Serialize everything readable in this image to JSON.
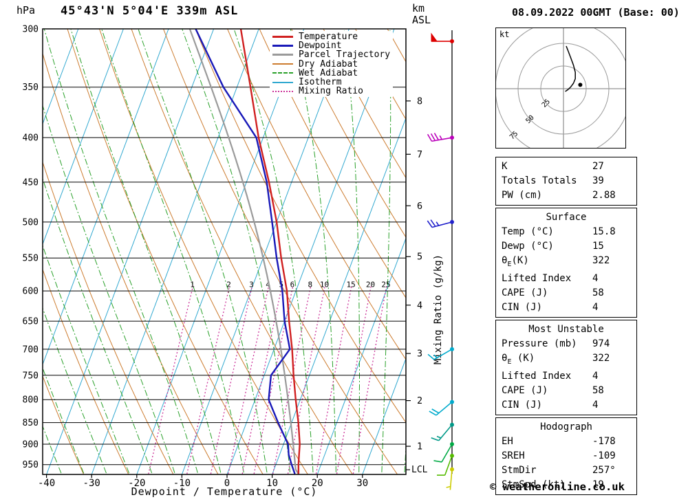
{
  "header": {
    "pressure_unit": "hPa",
    "station_title": "45°43'N 5°04'E 339m ASL",
    "altitude_unit_line1": "km",
    "altitude_unit_line2": "ASL",
    "datetime": "08.09.2022 00GMT (Base: 00)"
  },
  "axes": {
    "x_label": "Dewpoint / Temperature (°C)",
    "x_ticks": [
      -40,
      -30,
      -20,
      -10,
      0,
      10,
      20,
      30
    ],
    "pressure_ticks": [
      300,
      350,
      400,
      450,
      500,
      550,
      600,
      650,
      700,
      750,
      800,
      850,
      900,
      950
    ],
    "km_ticks": [
      1,
      2,
      3,
      4,
      5,
      6,
      7,
      8
    ],
    "km_tick_pressures": [
      905,
      802,
      708,
      623,
      548,
      479,
      418,
      363
    ],
    "lcl_label": "LCL",
    "mixing_ratio_label": "Mixing Ratio (g/kg)",
    "mixing_ratio_lines": [
      1,
      2,
      3,
      4,
      5,
      6,
      8,
      10,
      15,
      20,
      25
    ]
  },
  "legend": {
    "items": [
      {
        "label": "Temperature",
        "color": "#d02020",
        "style": "solid",
        "weight": 3
      },
      {
        "label": "Dewpoint",
        "color": "#1818b8",
        "style": "solid",
        "weight": 3
      },
      {
        "label": "Parcel Trajectory",
        "color": "#9a9a9a",
        "style": "solid",
        "weight": 3
      },
      {
        "label": "Dry Adiabat",
        "color": "#cc7b2e",
        "style": "solid",
        "weight": 2
      },
      {
        "label": "Wet Adiabat",
        "color": "#28a028",
        "style": "dashed",
        "weight": 2
      },
      {
        "label": "Isotherm",
        "color": "#30a8d0",
        "style": "solid",
        "weight": 2
      },
      {
        "label": "Mixing Ratio",
        "color": "#cc3399",
        "style": "dotted",
        "weight": 2
      }
    ]
  },
  "chart_data": {
    "type": "skewt-log-p",
    "pressure_range_hpa": [
      300,
      975
    ],
    "temperature_axis_c": [
      -40,
      40
    ],
    "profile": {
      "pressure_hpa": [
        974,
        950,
        925,
        900,
        850,
        800,
        750,
        700,
        650,
        600,
        550,
        500,
        450,
        400,
        350,
        300
      ],
      "temperature_c": [
        15.8,
        15,
        14.3,
        13.6,
        11.5,
        9,
        6.5,
        4,
        1,
        -2,
        -6,
        -10,
        -15,
        -21,
        -27,
        -34
      ],
      "dewpoint_c": [
        15,
        13.5,
        12,
        11,
        7,
        3,
        1.5,
        3.5,
        0,
        -3,
        -7,
        -11,
        -15.5,
        -21.5,
        -33,
        -44
      ]
    },
    "parcel": {
      "start_pressure_hpa": 974,
      "start_temp_c": 15.8,
      "start_dewpoint_c": 15
    },
    "lcl_pressure_hpa": 963
  },
  "wind_barbs": [
    {
      "pressure_hpa": 310,
      "direction_deg": 270,
      "speed_kt": 50,
      "color": "#dd0000"
    },
    {
      "pressure_hpa": 400,
      "direction_deg": 260,
      "speed_kt": 35,
      "color": "#bb00bb"
    },
    {
      "pressure_hpa": 500,
      "direction_deg": 255,
      "speed_kt": 25,
      "color": "#2222cc"
    },
    {
      "pressure_hpa": 700,
      "direction_deg": 240,
      "speed_kt": 15,
      "color": "#00aacc"
    },
    {
      "pressure_hpa": 805,
      "direction_deg": 230,
      "speed_kt": 20,
      "color": "#00aacc"
    },
    {
      "pressure_hpa": 855,
      "direction_deg": 220,
      "speed_kt": 15,
      "color": "#009988"
    },
    {
      "pressure_hpa": 900,
      "direction_deg": 210,
      "speed_kt": 10,
      "color": "#00aa44"
    },
    {
      "pressure_hpa": 928,
      "direction_deg": 200,
      "speed_kt": 10,
      "color": "#55bb00"
    },
    {
      "pressure_hpa": 962,
      "direction_deg": 185,
      "speed_kt": 5,
      "color": "#cccc00"
    }
  ],
  "hodograph": {
    "unit_label": "kt",
    "rings_kt": [
      25,
      50,
      75
    ],
    "ring_labels": [
      "25",
      "50",
      "75"
    ],
    "trace_uv_kt": [
      [
        2,
        -3
      ],
      [
        5,
        -1
      ],
      [
        8,
        2
      ],
      [
        11,
        6
      ],
      [
        13,
        11
      ],
      [
        13,
        18
      ],
      [
        11,
        26
      ],
      [
        8,
        34
      ],
      [
        5,
        42
      ],
      [
        3,
        47
      ]
    ],
    "storm_motion_uv_kt": [
      18.5,
      4.3
    ]
  },
  "tables": {
    "indices": {
      "rows": [
        [
          "K",
          "27"
        ],
        [
          "Totals Totals",
          "39"
        ],
        [
          "PW (cm)",
          "2.88"
        ]
      ]
    },
    "surface": {
      "title": "Surface",
      "rows": [
        [
          "Temp (°C)",
          "15.8"
        ],
        [
          "Dewp (°C)",
          "15"
        ],
        [
          "θE(K)",
          "322"
        ],
        [
          "Lifted Index",
          "4"
        ],
        [
          "CAPE (J)",
          "58"
        ],
        [
          "CIN (J)",
          "4"
        ]
      ]
    },
    "most_unstable": {
      "title": "Most Unstable",
      "rows": [
        [
          "Pressure (mb)",
          "974"
        ],
        [
          "θE (K)",
          "322"
        ],
        [
          "Lifted Index",
          "4"
        ],
        [
          "CAPE (J)",
          "58"
        ],
        [
          "CIN (J)",
          "4"
        ]
      ]
    },
    "hodograph": {
      "title": "Hodograph",
      "rows": [
        [
          "EH",
          "-178"
        ],
        [
          "SREH",
          "-109"
        ],
        [
          "StmDir",
          "257°"
        ],
        [
          "StmSpd (kt)",
          "19"
        ]
      ]
    }
  },
  "footer": {
    "copyright": "© weatheronline.co.uk"
  }
}
